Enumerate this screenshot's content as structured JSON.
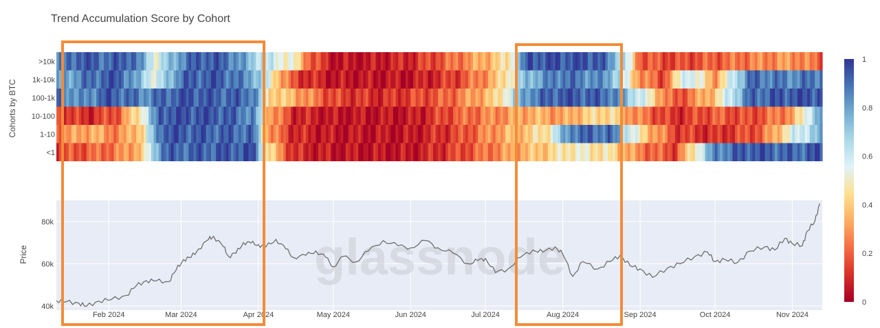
{
  "chart_data": [
    {
      "type": "heatmap",
      "title": "Trend Accumulation Score by Cohort",
      "ylabel": "Cohorts by BTC",
      "cohorts": [
        ">10k",
        "1k-10k",
        "100-1k",
        "10-100",
        "1-10",
        "<1"
      ],
      "x_start": "2024-01-11",
      "x_end": "2024-11-13",
      "colorbar": {
        "min": 0,
        "max": 1,
        "ticks": [
          "0",
          "0.2",
          "0.4",
          "0.6",
          "0.8",
          "1"
        ]
      },
      "segments": [
        {
          "cohort": ">10k",
          "points": [
            [
              "2024-01-11",
              0.8
            ],
            [
              "2024-01-20",
              0.95
            ],
            [
              "2024-02-01",
              0.9
            ],
            [
              "2024-02-10",
              0.95
            ],
            [
              "2024-02-20",
              0.55
            ],
            [
              "2024-03-01",
              0.85
            ],
            [
              "2024-03-10",
              0.95
            ],
            [
              "2024-03-20",
              0.9
            ],
            [
              "2024-03-30",
              0.7
            ],
            [
              "2024-04-05",
              0.6
            ],
            [
              "2024-04-15",
              0.5
            ],
            [
              "2024-04-22",
              0.2
            ],
            [
              "2024-05-01",
              0.05
            ],
            [
              "2024-05-15",
              0.05
            ],
            [
              "2024-06-01",
              0.1
            ],
            [
              "2024-06-15",
              0.2
            ],
            [
              "2024-07-01",
              0.35
            ],
            [
              "2024-07-10",
              0.45
            ],
            [
              "2024-07-18",
              0.95
            ],
            [
              "2024-08-01",
              0.95
            ],
            [
              "2024-08-15",
              0.95
            ],
            [
              "2024-08-25",
              0.7
            ],
            [
              "2024-09-01",
              0.2
            ],
            [
              "2024-09-15",
              0.15
            ],
            [
              "2024-10-01",
              0.2
            ],
            [
              "2024-10-15",
              0.25
            ],
            [
              "2024-11-01",
              0.3
            ],
            [
              "2024-11-13",
              0.2
            ]
          ]
        },
        {
          "cohort": "1k-10k",
          "points": [
            [
              "2024-01-11",
              0.75
            ],
            [
              "2024-01-25",
              0.9
            ],
            [
              "2024-02-05",
              0.95
            ],
            [
              "2024-02-20",
              0.55
            ],
            [
              "2024-03-01",
              0.9
            ],
            [
              "2024-03-15",
              0.95
            ],
            [
              "2024-03-30",
              0.8
            ],
            [
              "2024-04-05",
              0.55
            ],
            [
              "2024-04-15",
              0.15
            ],
            [
              "2024-05-01",
              0.05
            ],
            [
              "2024-06-01",
              0.05
            ],
            [
              "2024-06-20",
              0.15
            ],
            [
              "2024-07-05",
              0.35
            ],
            [
              "2024-07-18",
              0.75
            ],
            [
              "2024-08-01",
              0.9
            ],
            [
              "2024-08-20",
              0.8
            ],
            [
              "2024-09-01",
              0.3
            ],
            [
              "2024-09-10",
              0.15
            ],
            [
              "2024-09-20",
              0.65
            ],
            [
              "2024-10-01",
              0.3
            ],
            [
              "2024-10-15",
              0.9
            ],
            [
              "2024-11-01",
              0.85
            ],
            [
              "2024-11-13",
              0.9
            ]
          ]
        },
        {
          "cohort": "100-1k",
          "points": [
            [
              "2024-01-11",
              0.95
            ],
            [
              "2024-01-20",
              0.8
            ],
            [
              "2024-02-01",
              0.95
            ],
            [
              "2024-02-15",
              0.85
            ],
            [
              "2024-03-01",
              0.95
            ],
            [
              "2024-03-30",
              0.9
            ],
            [
              "2024-04-05",
              0.45
            ],
            [
              "2024-04-15",
              0.35
            ],
            [
              "2024-05-01",
              0.15
            ],
            [
              "2024-05-20",
              0.1
            ],
            [
              "2024-06-15",
              0.2
            ],
            [
              "2024-07-05",
              0.4
            ],
            [
              "2024-07-18",
              0.85
            ],
            [
              "2024-08-01",
              0.95
            ],
            [
              "2024-08-20",
              0.9
            ],
            [
              "2024-09-01",
              0.6
            ],
            [
              "2024-09-15",
              0.15
            ],
            [
              "2024-10-01",
              0.4
            ],
            [
              "2024-10-15",
              0.9
            ],
            [
              "2024-11-01",
              0.95
            ],
            [
              "2024-11-13",
              0.95
            ]
          ]
        },
        {
          "cohort": "10-100",
          "points": [
            [
              "2024-01-11",
              0.15
            ],
            [
              "2024-01-25",
              0.1
            ],
            [
              "2024-02-05",
              0.2
            ],
            [
              "2024-02-15",
              0.55
            ],
            [
              "2024-02-22",
              0.95
            ],
            [
              "2024-03-15",
              0.95
            ],
            [
              "2024-03-30",
              0.85
            ],
            [
              "2024-04-05",
              0.35
            ],
            [
              "2024-04-15",
              0.1
            ],
            [
              "2024-05-01",
              0.05
            ],
            [
              "2024-06-01",
              0.05
            ],
            [
              "2024-06-20",
              0.2
            ],
            [
              "2024-07-10",
              0.3
            ],
            [
              "2024-07-20",
              0.35
            ],
            [
              "2024-08-01",
              0.3
            ],
            [
              "2024-08-10",
              0.4
            ],
            [
              "2024-08-20",
              0.45
            ],
            [
              "2024-09-01",
              0.25
            ],
            [
              "2024-09-15",
              0.1
            ],
            [
              "2024-10-01",
              0.2
            ],
            [
              "2024-10-15",
              0.15
            ],
            [
              "2024-11-01",
              0.3
            ],
            [
              "2024-11-13",
              0.85
            ]
          ]
        },
        {
          "cohort": "1-10",
          "points": [
            [
              "2024-01-11",
              0.25
            ],
            [
              "2024-01-25",
              0.35
            ],
            [
              "2024-02-05",
              0.25
            ],
            [
              "2024-02-15",
              0.45
            ],
            [
              "2024-02-22",
              0.95
            ],
            [
              "2024-03-30",
              0.9
            ],
            [
              "2024-04-05",
              0.3
            ],
            [
              "2024-04-15",
              0.1
            ],
            [
              "2024-05-01",
              0.05
            ],
            [
              "2024-06-01",
              0.05
            ],
            [
              "2024-06-20",
              0.15
            ],
            [
              "2024-07-10",
              0.35
            ],
            [
              "2024-07-25",
              0.45
            ],
            [
              "2024-08-05",
              0.9
            ],
            [
              "2024-08-20",
              0.9
            ],
            [
              "2024-09-01",
              0.45
            ],
            [
              "2024-09-15",
              0.15
            ],
            [
              "2024-10-01",
              0.1
            ],
            [
              "2024-10-20",
              0.2
            ],
            [
              "2024-11-01",
              0.55
            ],
            [
              "2024-11-13",
              0.75
            ]
          ]
        },
        {
          "cohort": "<1",
          "points": [
            [
              "2024-01-11",
              0.15
            ],
            [
              "2024-01-25",
              0.2
            ],
            [
              "2024-02-05",
              0.25
            ],
            [
              "2024-02-15",
              0.4
            ],
            [
              "2024-02-22",
              0.9
            ],
            [
              "2024-03-30",
              0.95
            ],
            [
              "2024-04-05",
              0.45
            ],
            [
              "2024-04-15",
              0.1
            ],
            [
              "2024-05-01",
              0.05
            ],
            [
              "2024-06-01",
              0.05
            ],
            [
              "2024-06-20",
              0.15
            ],
            [
              "2024-07-10",
              0.3
            ],
            [
              "2024-07-25",
              0.4
            ],
            [
              "2024-08-05",
              0.5
            ],
            [
              "2024-08-20",
              0.45
            ],
            [
              "2024-09-01",
              0.25
            ],
            [
              "2024-09-15",
              0.15
            ],
            [
              "2024-10-01",
              0.85
            ],
            [
              "2024-10-15",
              0.95
            ],
            [
              "2024-11-01",
              0.9
            ],
            [
              "2024-11-13",
              0.95
            ]
          ]
        }
      ]
    },
    {
      "type": "line",
      "ylabel": "Price",
      "ylim": [
        38000,
        90000
      ],
      "yticks": [
        40000,
        60000,
        80000
      ],
      "ytick_labels": [
        "40k",
        "60k",
        "80k"
      ],
      "x_ticks": [
        {
          "date": "2024-02-01",
          "label": "Feb 2024"
        },
        {
          "date": "2024-03-01",
          "label": "Mar 2024"
        },
        {
          "date": "2024-04-01",
          "label": "Apr 2024"
        },
        {
          "date": "2024-05-01",
          "label": "May 2024"
        },
        {
          "date": "2024-06-01",
          "label": "Jun 2024"
        },
        {
          "date": "2024-07-01",
          "label": "Jul 2024"
        },
        {
          "date": "2024-08-01",
          "label": "Aug 2024"
        },
        {
          "date": "2024-09-01",
          "label": "Sep 2024"
        },
        {
          "date": "2024-10-01",
          "label": "Oct 2024"
        },
        {
          "date": "2024-11-01",
          "label": "Nov 2024"
        }
      ],
      "series": [
        {
          "points": [
            [
              "2024-01-11",
              42500
            ],
            [
              "2024-01-15",
              42000
            ],
            [
              "2024-01-20",
              41300
            ],
            [
              "2024-01-23",
              39800
            ],
            [
              "2024-01-28",
              42300
            ],
            [
              "2024-02-02",
              43000
            ],
            [
              "2024-02-08",
              45000
            ],
            [
              "2024-02-12",
              49500
            ],
            [
              "2024-02-16",
              52000
            ],
            [
              "2024-02-20",
              51800
            ],
            [
              "2024-02-25",
              51500
            ],
            [
              "2024-02-28",
              57000
            ],
            [
              "2024-03-02",
              62000
            ],
            [
              "2024-03-05",
              63000
            ],
            [
              "2024-03-08",
              67000
            ],
            [
              "2024-03-12",
              71500
            ],
            [
              "2024-03-14",
              73000
            ],
            [
              "2024-03-18",
              68000
            ],
            [
              "2024-03-20",
              63500
            ],
            [
              "2024-03-23",
              65000
            ],
            [
              "2024-03-26",
              70000
            ],
            [
              "2024-03-29",
              69800
            ],
            [
              "2024-04-01",
              69000
            ],
            [
              "2024-04-04",
              68000
            ],
            [
              "2024-04-08",
              71500
            ],
            [
              "2024-04-12",
              67000
            ],
            [
              "2024-04-15",
              63000
            ],
            [
              "2024-04-20",
              64000
            ],
            [
              "2024-04-24",
              66000
            ],
            [
              "2024-04-28",
              63000
            ],
            [
              "2024-05-01",
              58500
            ],
            [
              "2024-05-05",
              63500
            ],
            [
              "2024-05-10",
              60800
            ],
            [
              "2024-05-15",
              66000
            ],
            [
              "2024-05-21",
              71000
            ],
            [
              "2024-05-27",
              68500
            ],
            [
              "2024-06-01",
              67500
            ],
            [
              "2024-06-07",
              71000
            ],
            [
              "2024-06-12",
              67500
            ],
            [
              "2024-06-18",
              65000
            ],
            [
              "2024-06-24",
              60000
            ],
            [
              "2024-06-28",
              61500
            ],
            [
              "2024-07-01",
              62500
            ],
            [
              "2024-07-05",
              55800
            ],
            [
              "2024-07-10",
              57500
            ],
            [
              "2024-07-15",
              63000
            ],
            [
              "2024-07-20",
              66500
            ],
            [
              "2024-07-24",
              65500
            ],
            [
              "2024-07-29",
              68000
            ],
            [
              "2024-08-01",
              64500
            ],
            [
              "2024-08-05",
              54000
            ],
            [
              "2024-08-09",
              61000
            ],
            [
              "2024-08-15",
              57500
            ],
            [
              "2024-08-20",
              61000
            ],
            [
              "2024-08-24",
              64000
            ],
            [
              "2024-08-28",
              59000
            ],
            [
              "2024-09-01",
              57500
            ],
            [
              "2024-09-06",
              53500
            ],
            [
              "2024-09-12",
              58000
            ],
            [
              "2024-09-17",
              60000
            ],
            [
              "2024-09-23",
              63500
            ],
            [
              "2024-09-28",
              65500
            ],
            [
              "2024-10-01",
              61000
            ],
            [
              "2024-10-05",
              62000
            ],
            [
              "2024-10-10",
              60500
            ],
            [
              "2024-10-15",
              66000
            ],
            [
              "2024-10-21",
              68000
            ],
            [
              "2024-10-25",
              66500
            ],
            [
              "2024-10-29",
              72000
            ],
            [
              "2024-11-01",
              69500
            ],
            [
              "2024-11-05",
              68500
            ],
            [
              "2024-11-07",
              75500
            ],
            [
              "2024-11-10",
              80000
            ],
            [
              "2024-11-12",
              88500
            ]
          ]
        }
      ]
    }
  ],
  "colors": {
    "highlight_box": "#F28C38",
    "price_line": "#6e6e6e",
    "price_bg": "#e8ecf6",
    "scale": [
      "#a50026",
      "#d73027",
      "#f46d43",
      "#fdae61",
      "#fee090",
      "#e0f3f8",
      "#abd9e9",
      "#74add1",
      "#4575b4",
      "#313695"
    ]
  },
  "watermark": "glassnode"
}
